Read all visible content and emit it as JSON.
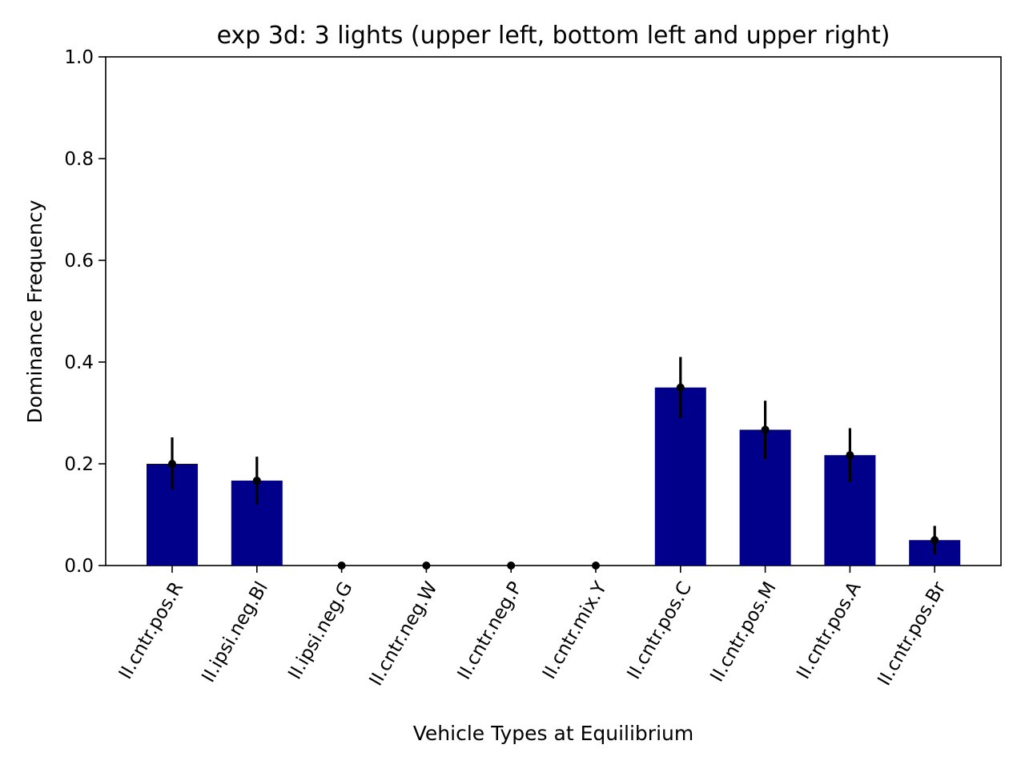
{
  "chart_data": {
    "type": "bar",
    "title": "exp 3d: 3 lights (upper left, bottom left and upper right)",
    "xlabel": "Vehicle Types at Equilibrium",
    "ylabel": "Dominance Frequency",
    "ylim": [
      0,
      1.0
    ],
    "yticks": [
      "0.0",
      "0.2",
      "0.4",
      "0.6",
      "0.8",
      "1.0"
    ],
    "categories": [
      "II.cntr.pos.R",
      "II.ipsi.neg.Bl",
      "II.ipsi.neg.G",
      "II.cntr.neg.W",
      "II.cntr.neg.P",
      "II.cntr.mix.Y",
      "II.cntr.pos.C",
      "II.cntr.pos.M",
      "II.cntr.pos.A",
      "II.cntr.pos.Br"
    ],
    "values": [
      0.2,
      0.167,
      0.0,
      0.0,
      0.0,
      0.0,
      0.35,
      0.267,
      0.217,
      0.05
    ],
    "error_low": [
      0.15,
      0.12,
      0.0,
      0.0,
      0.0,
      0.0,
      0.29,
      0.21,
      0.165,
      0.022
    ],
    "error_high": [
      0.252,
      0.214,
      0.0,
      0.0,
      0.0,
      0.0,
      0.41,
      0.324,
      0.27,
      0.078
    ],
    "bar_color": "#00008b",
    "errorbar_color": "#000000",
    "grid": false,
    "legend": "none"
  }
}
